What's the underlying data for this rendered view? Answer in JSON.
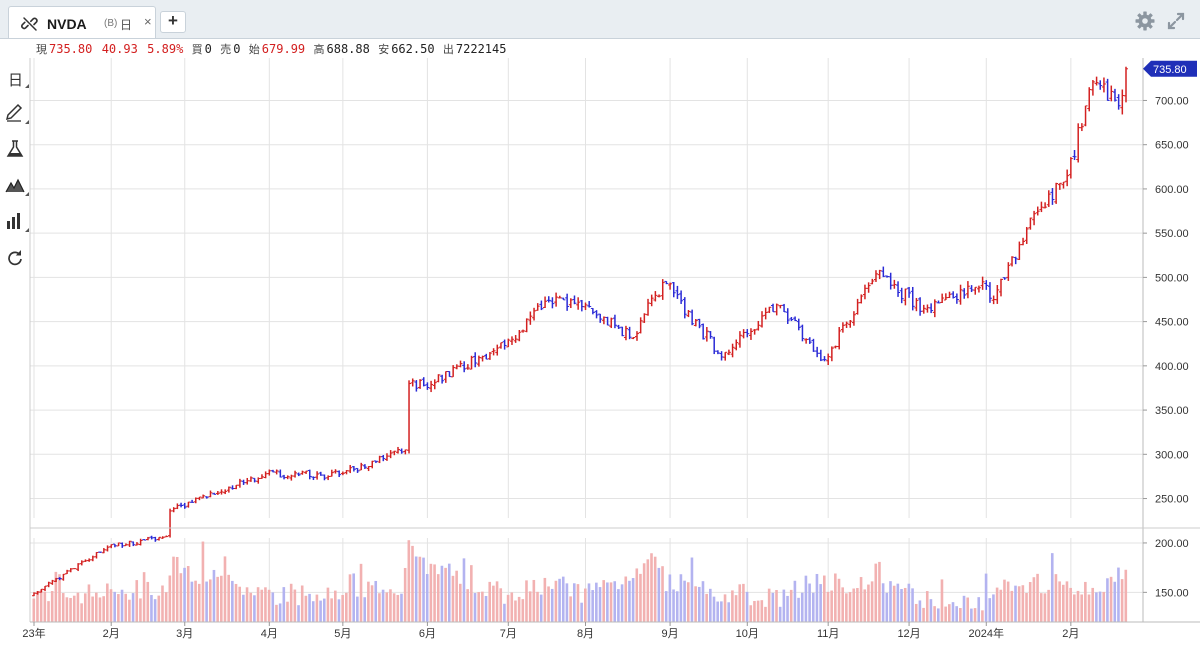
{
  "tab": {
    "symbol": "NVDA",
    "source": "(B)",
    "period": "日",
    "close": "×",
    "add": "+"
  },
  "quote": {
    "current_label": "現",
    "current": "735.80",
    "change": "40.93",
    "change_pct": "5.89%",
    "bid_label": "買",
    "bid": "0",
    "ask_label": "売",
    "ask": "0",
    "open_label": "始",
    "open": "679.99",
    "high_label": "高",
    "high": "688.88",
    "low_label": "安",
    "low": "662.50",
    "volume_label": "出",
    "volume": "7222145"
  },
  "toolbar": [
    {
      "name": "period-tool",
      "label": "日"
    },
    {
      "name": "draw-tool-icon",
      "icon": "pen-icon"
    },
    {
      "name": "indicator-tool-icon",
      "icon": "flask-icon"
    },
    {
      "name": "chart-type-tool-icon",
      "icon": "mountain-chart-icon"
    },
    {
      "name": "volume-tool-icon",
      "icon": "bar-chart-icon"
    },
    {
      "name": "refresh-tool-icon",
      "icon": "refresh-icon"
    }
  ],
  "icons": {
    "tab_icon": "link-broken-icon",
    "settings": "gear-icon",
    "fullscreen": "expand-icon"
  },
  "colors": {
    "up": "#d32020",
    "down": "#2a2ad6",
    "up_volume": "#f2b1b1",
    "down_volume": "#b3b3f0",
    "grid": "#e3e3e3",
    "price_tag": "#1f2fb8"
  },
  "chart_data": {
    "type": "ohlc",
    "title": "NVDA",
    "interval": "daily",
    "price_axis": {
      "ticks": [
        "250.00",
        "300.00",
        "350.00",
        "400.00",
        "450.00",
        "500.00",
        "550.00",
        "600.00",
        "650.00",
        "700.00"
      ],
      "ylim": [
        228,
        748
      ],
      "last_price_label": "735.80"
    },
    "volume_axis": {
      "ticks": [
        "150.00",
        "200.00"
      ],
      "ylim": [
        120,
        205
      ]
    },
    "x_labels": [
      "23年",
      "2月",
      "3月",
      "4月",
      "5月",
      "6月",
      "7月",
      "8月",
      "9月",
      "10月",
      "11月",
      "12月",
      "2024年",
      "2月"
    ],
    "anchors": [
      {
        "date": "2023-01-03",
        "close": 143,
        "volume": 146
      },
      {
        "date": "2023-01-31",
        "close": 195,
        "volume": 150
      },
      {
        "date": "2023-02-22",
        "close": 207,
        "volume": 153
      },
      {
        "date": "2023-02-23",
        "close": 236,
        "volume": 178
      },
      {
        "date": "2023-03-31",
        "close": 278,
        "volume": 148
      },
      {
        "date": "2023-04-28",
        "close": 277,
        "volume": 145
      },
      {
        "date": "2023-05-24",
        "close": 305,
        "volume": 160
      },
      {
        "date": "2023-05-25",
        "close": 380,
        "volume": 200
      },
      {
        "date": "2023-05-31",
        "close": 378,
        "volume": 180
      },
      {
        "date": "2023-06-30",
        "close": 423,
        "volume": 148
      },
      {
        "date": "2023-07-18",
        "close": 474,
        "volume": 160
      },
      {
        "date": "2023-07-31",
        "close": 467,
        "volume": 150
      },
      {
        "date": "2023-08-18",
        "close": 432,
        "volume": 165
      },
      {
        "date": "2023-08-24",
        "close": 471,
        "volume": 190
      },
      {
        "date": "2023-08-31",
        "close": 493,
        "volume": 160
      },
      {
        "date": "2023-09-21",
        "close": 410,
        "volume": 150
      },
      {
        "date": "2023-10-12",
        "close": 469,
        "volume": 145
      },
      {
        "date": "2023-10-31",
        "close": 407,
        "volume": 160
      },
      {
        "date": "2023-11-20",
        "close": 504,
        "volume": 160
      },
      {
        "date": "2023-12-07",
        "close": 465,
        "volume": 145
      },
      {
        "date": "2023-12-29",
        "close": 495,
        "volume": 140
      },
      {
        "date": "2024-01-03",
        "close": 475,
        "volume": 150
      },
      {
        "date": "2024-01-18",
        "close": 572,
        "volume": 160
      },
      {
        "date": "2024-01-31",
        "close": 615,
        "volume": 158
      },
      {
        "date": "2024-02-09",
        "close": 721,
        "volume": 158
      },
      {
        "date": "2024-02-20",
        "close": 694,
        "volume": 165
      },
      {
        "date": "2024-02-22",
        "close": 735.8,
        "volume": 172
      }
    ]
  }
}
